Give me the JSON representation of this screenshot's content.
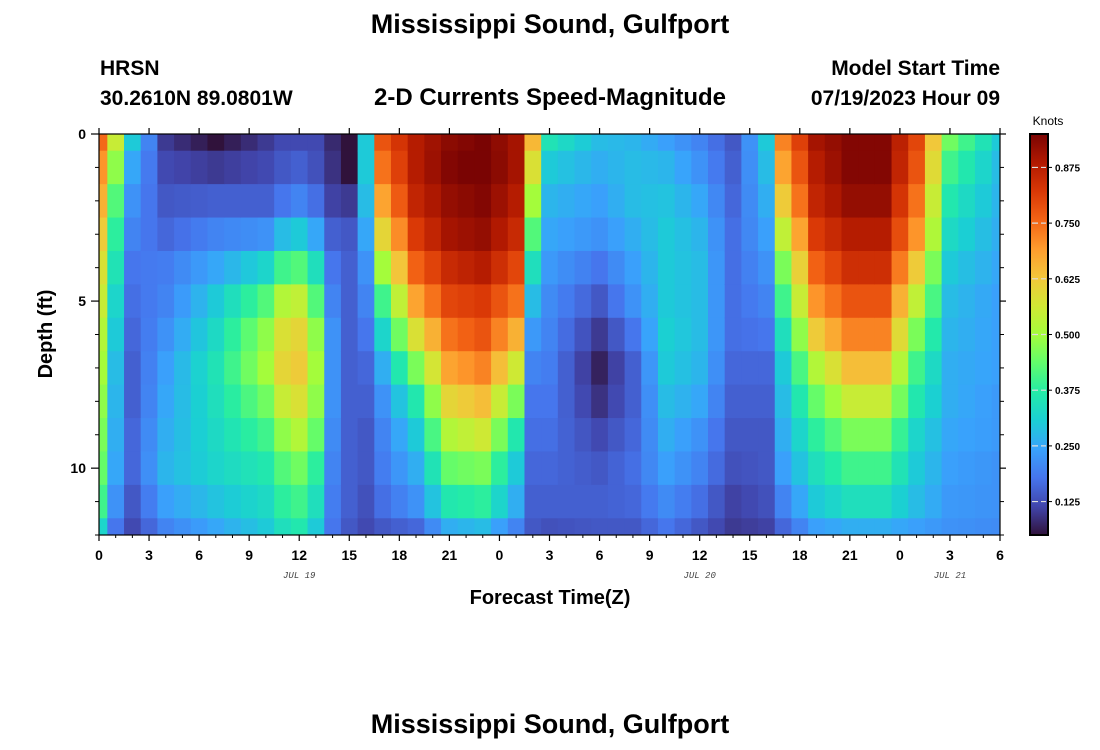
{
  "header": {
    "title": "Mississippi Sound, Gulfport",
    "station_id": "HRSN",
    "coordinates": "30.2610N  89.0801W",
    "subtitle": "2-D Currents Speed-Magnitude",
    "model_start_label": "Model Start Time",
    "model_start_value": "07/19/2023 Hour 09"
  },
  "footer": {
    "title": "Mississippi Sound, Gulfport"
  },
  "colors": {
    "colormap": [
      "#30123b",
      "#4145ab",
      "#4675ed",
      "#39a2fc",
      "#1bcfd4",
      "#24eca6",
      "#61fc6c",
      "#a4fc3b",
      "#d1e834",
      "#f3c63a",
      "#fe9b2d",
      "#f36315",
      "#d93806",
      "#b11901",
      "#7a0403"
    ]
  },
  "chart_data": {
    "type": "heatmap",
    "xlabel": "Forecast Time(Z)",
    "ylabel": "Depth (ft)",
    "colorbar_label": "Knots",
    "x_range_hours": [
      0,
      54
    ],
    "y_range": [
      0,
      12
    ],
    "y_ticks": [
      0,
      5,
      10
    ],
    "y_tick_labels": [
      "0",
      "5",
      "10"
    ],
    "x_ticks_hours": [
      0,
      3,
      6,
      9,
      12,
      15,
      18,
      21,
      24,
      27,
      30,
      33,
      36,
      39,
      42,
      45,
      48,
      51,
      54
    ],
    "x_tick_labels": [
      "0",
      "3",
      "6",
      "9",
      "12",
      "15",
      "18",
      "21",
      "0",
      "3",
      "6",
      "9",
      "12",
      "15",
      "18",
      "21",
      "0",
      "3",
      "6"
    ],
    "date_labels": [
      {
        "text": "JUL 19",
        "hour": 12
      },
      {
        "text": "JUL 20",
        "hour": 36
      },
      {
        "text": "JUL 21",
        "hour": 51
      }
    ],
    "colorbar_range": [
      0.05,
      0.95
    ],
    "colorbar_ticks": [
      0.125,
      0.25,
      0.375,
      0.5,
      0.625,
      0.75,
      0.875
    ],
    "colorbar_tick_labels": [
      "0.125",
      "0.250",
      "0.375",
      "0.500",
      "0.625",
      "0.750",
      "0.875"
    ],
    "x_hours": [
      0,
      1,
      2,
      3,
      4,
      5,
      6,
      7,
      8,
      9,
      10,
      11,
      12,
      13,
      14,
      15,
      16,
      17,
      18,
      19,
      20,
      21,
      22,
      23,
      24,
      25,
      26,
      27,
      28,
      29,
      30,
      31,
      32,
      33,
      34,
      35,
      36,
      37,
      38,
      39,
      40,
      41,
      42,
      43,
      44,
      45,
      46,
      47,
      48,
      49,
      50,
      51,
      52,
      53,
      54
    ],
    "depth_ft": [
      0,
      1,
      2,
      3,
      4,
      5,
      6,
      7,
      8,
      9,
      10,
      11,
      12
    ],
    "speed_profiles": [
      {
        "hour": 0,
        "values": [
          0.75,
          0.7,
          0.66,
          0.62,
          0.58,
          0.55,
          0.52,
          0.5,
          0.48,
          0.46,
          0.44,
          0.4,
          0.32
        ]
      },
      {
        "hour": 1,
        "values": [
          0.55,
          0.48,
          0.42,
          0.38,
          0.35,
          0.32,
          0.3,
          0.28,
          0.27,
          0.26,
          0.25,
          0.22,
          0.18
        ]
      },
      {
        "hour": 2,
        "values": [
          0.3,
          0.25,
          0.22,
          0.2,
          0.18,
          0.17,
          0.16,
          0.15,
          0.15,
          0.16,
          0.16,
          0.14,
          0.12
        ]
      },
      {
        "hour": 4,
        "values": [
          0.1,
          0.12,
          0.14,
          0.16,
          0.19,
          0.2,
          0.22,
          0.24,
          0.25,
          0.26,
          0.27,
          0.24,
          0.2
        ]
      },
      {
        "hour": 7,
        "values": [
          0.05,
          0.1,
          0.15,
          0.2,
          0.25,
          0.3,
          0.33,
          0.35,
          0.34,
          0.33,
          0.32,
          0.29,
          0.25
        ]
      },
      {
        "hour": 10,
        "values": [
          0.1,
          0.12,
          0.15,
          0.22,
          0.32,
          0.42,
          0.48,
          0.5,
          0.45,
          0.4,
          0.36,
          0.33,
          0.3
        ]
      },
      {
        "hour": 11,
        "values": [
          0.12,
          0.14,
          0.18,
          0.28,
          0.4,
          0.52,
          0.58,
          0.6,
          0.55,
          0.48,
          0.42,
          0.38,
          0.34
        ]
      },
      {
        "hour": 12,
        "values": [
          0.12,
          0.15,
          0.2,
          0.3,
          0.42,
          0.54,
          0.6,
          0.62,
          0.58,
          0.52,
          0.45,
          0.4,
          0.36
        ]
      },
      {
        "hour": 13,
        "values": [
          0.12,
          0.13,
          0.17,
          0.25,
          0.34,
          0.42,
          0.48,
          0.5,
          0.48,
          0.44,
          0.38,
          0.34,
          0.3
        ]
      },
      {
        "hour": 14,
        "values": [
          0.08,
          0.09,
          0.11,
          0.15,
          0.18,
          0.2,
          0.22,
          0.22,
          0.22,
          0.21,
          0.2,
          0.19,
          0.18
        ]
      },
      {
        "hour": 15,
        "values": [
          0.02,
          0.05,
          0.1,
          0.14,
          0.15,
          0.15,
          0.15,
          0.15,
          0.15,
          0.15,
          0.15,
          0.15,
          0.14
        ]
      },
      {
        "hour": 16,
        "values": [
          0.3,
          0.3,
          0.28,
          0.25,
          0.22,
          0.2,
          0.18,
          0.16,
          0.15,
          0.14,
          0.14,
          0.13,
          0.12
        ]
      },
      {
        "hour": 17,
        "values": [
          0.78,
          0.74,
          0.68,
          0.6,
          0.5,
          0.4,
          0.32,
          0.26,
          0.22,
          0.2,
          0.19,
          0.17,
          0.14
        ]
      },
      {
        "hour": 19,
        "values": [
          0.88,
          0.88,
          0.86,
          0.82,
          0.76,
          0.68,
          0.58,
          0.46,
          0.36,
          0.3,
          0.26,
          0.22,
          0.16
        ]
      },
      {
        "hour": 21,
        "values": [
          0.93,
          0.94,
          0.92,
          0.9,
          0.85,
          0.8,
          0.74,
          0.68,
          0.6,
          0.52,
          0.44,
          0.36,
          0.26
        ]
      },
      {
        "hour": 23,
        "values": [
          0.95,
          0.96,
          0.94,
          0.92,
          0.88,
          0.82,
          0.78,
          0.72,
          0.64,
          0.56,
          0.46,
          0.38,
          0.28
        ]
      },
      {
        "hour": 25,
        "values": [
          0.9,
          0.9,
          0.88,
          0.85,
          0.8,
          0.74,
          0.66,
          0.56,
          0.46,
          0.36,
          0.3,
          0.26,
          0.2
        ]
      },
      {
        "hour": 26,
        "values": [
          0.65,
          0.58,
          0.5,
          0.42,
          0.34,
          0.28,
          0.23,
          0.2,
          0.18,
          0.17,
          0.16,
          0.15,
          0.14
        ]
      },
      {
        "hour": 27,
        "values": [
          0.35,
          0.3,
          0.27,
          0.25,
          0.23,
          0.21,
          0.2,
          0.19,
          0.18,
          0.17,
          0.16,
          0.15,
          0.13
        ]
      },
      {
        "hour": 30,
        "values": [
          0.28,
          0.26,
          0.24,
          0.22,
          0.18,
          0.14,
          0.1,
          0.07,
          0.09,
          0.12,
          0.14,
          0.15,
          0.14
        ]
      },
      {
        "hour": 32,
        "values": [
          0.27,
          0.28,
          0.28,
          0.26,
          0.24,
          0.22,
          0.18,
          0.15,
          0.15,
          0.16,
          0.17,
          0.16,
          0.14
        ]
      },
      {
        "hour": 34,
        "values": [
          0.24,
          0.27,
          0.29,
          0.3,
          0.3,
          0.3,
          0.31,
          0.3,
          0.28,
          0.26,
          0.24,
          0.21,
          0.18
        ]
      },
      {
        "hour": 36,
        "values": [
          0.2,
          0.22,
          0.25,
          0.27,
          0.28,
          0.28,
          0.28,
          0.27,
          0.25,
          0.22,
          0.2,
          0.17,
          0.14
        ]
      },
      {
        "hour": 38,
        "values": [
          0.14,
          0.15,
          0.16,
          0.17,
          0.17,
          0.17,
          0.17,
          0.16,
          0.15,
          0.14,
          0.13,
          0.11,
          0.1
        ]
      },
      {
        "hour": 40,
        "values": [
          0.3,
          0.28,
          0.26,
          0.24,
          0.22,
          0.2,
          0.18,
          0.16,
          0.15,
          0.14,
          0.14,
          0.13,
          0.11
        ]
      },
      {
        "hour": 41,
        "values": [
          0.72,
          0.68,
          0.62,
          0.54,
          0.46,
          0.4,
          0.34,
          0.3,
          0.28,
          0.26,
          0.24,
          0.2,
          0.16
        ]
      },
      {
        "hour": 43,
        "values": [
          0.9,
          0.88,
          0.86,
          0.82,
          0.76,
          0.7,
          0.62,
          0.52,
          0.44,
          0.38,
          0.34,
          0.3,
          0.24
        ]
      },
      {
        "hour": 45,
        "values": [
          0.94,
          0.94,
          0.92,
          0.88,
          0.84,
          0.78,
          0.72,
          0.64,
          0.55,
          0.46,
          0.4,
          0.34,
          0.26
        ]
      },
      {
        "hour": 47,
        "values": [
          0.94,
          0.94,
          0.92,
          0.88,
          0.84,
          0.78,
          0.72,
          0.64,
          0.55,
          0.46,
          0.4,
          0.34,
          0.26
        ]
      },
      {
        "hour": 49,
        "values": [
          0.8,
          0.78,
          0.74,
          0.7,
          0.62,
          0.54,
          0.46,
          0.4,
          0.36,
          0.32,
          0.3,
          0.28,
          0.24
        ]
      },
      {
        "hour": 51,
        "values": [
          0.45,
          0.4,
          0.36,
          0.33,
          0.3,
          0.28,
          0.27,
          0.26,
          0.26,
          0.25,
          0.24,
          0.23,
          0.22
        ]
      },
      {
        "hour": 54,
        "values": [
          0.3,
          0.28,
          0.27,
          0.26,
          0.25,
          0.24,
          0.24,
          0.24,
          0.23,
          0.23,
          0.22,
          0.22,
          0.21
        ]
      }
    ]
  }
}
